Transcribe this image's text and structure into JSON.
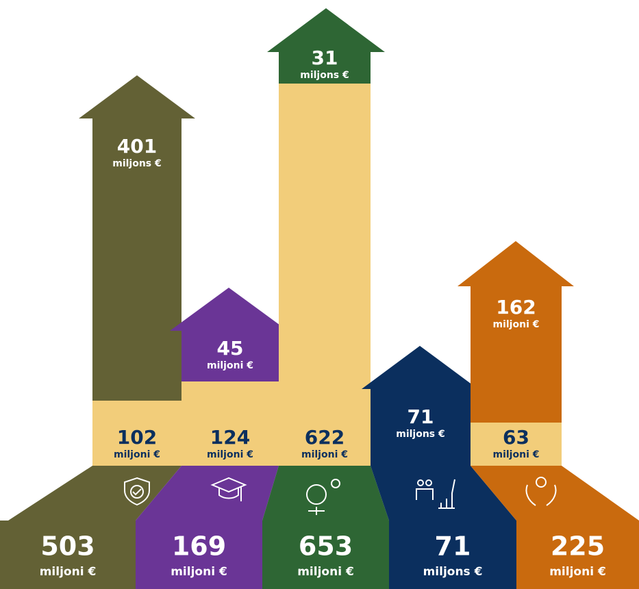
{
  "columns": [
    {
      "base": {
        "value": "102",
        "unit": "miljoni €"
      },
      "top": {
        "value": "401",
        "unit": "miljons €"
      },
      "total": {
        "value": "503",
        "unit": "miljoni €"
      }
    },
    {
      "base": {
        "value": "124",
        "unit": "miljoni €"
      },
      "top": {
        "value": "45",
        "unit": "miljoni €"
      },
      "total": {
        "value": "169",
        "unit": "miljoni €"
      }
    },
    {
      "base": {
        "value": "622",
        "unit": "miljoni €"
      },
      "top": {
        "value": "31",
        "unit": "miljons €"
      },
      "total": {
        "value": "653",
        "unit": "miljoni €"
      }
    },
    {
      "top": {
        "value": "71",
        "unit": "miljons €"
      },
      "total": {
        "value": "71",
        "unit": "miljons €"
      }
    },
    {
      "base": {
        "value": "63",
        "unit": "miljoni €"
      },
      "top": {
        "value": "162",
        "unit": "miljoni €"
      },
      "total": {
        "value": "225",
        "unit": "miljoni €"
      }
    }
  ]
}
